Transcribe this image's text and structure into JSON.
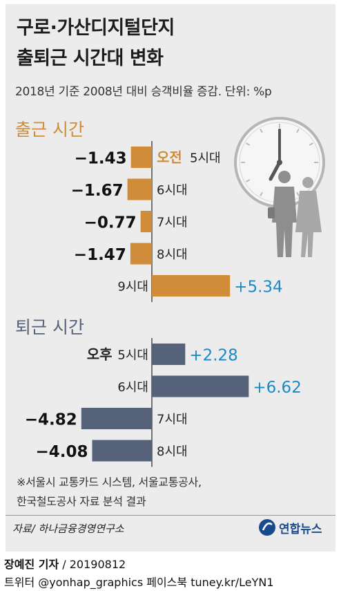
{
  "title_line1": "구로·가산디지털단지",
  "title_line2": "출퇴근 시간대 변화",
  "subtitle": "2018년 기준 2008년 대비 승객비율 증감. 단위: %p",
  "note_line1": "※서울시 교통카드 시스템, 서울교통공사,",
  "note_line2": "한국철도공사 자료 분석 결과",
  "source": "자료/ 하나금융경영연구소",
  "logo_text": "연합뉴스",
  "byline_name": "장예진 기자",
  "byline_date": "/ 20190812",
  "social": "트위터 @yonhap_graphics  페이스북 tuney.kr/LeYN1",
  "colors": {
    "morning": "#d08c38",
    "evening": "#56627a",
    "positive_text": "#1a8ac6",
    "background": "#ececec"
  },
  "icons": [
    "clock-icon",
    "commuters-icon",
    "yonhap-logo-icon"
  ],
  "chart_data": [
    {
      "type": "bar",
      "title": "출근 시간",
      "categories": [
        "5시대",
        "6시대",
        "7시대",
        "8시대",
        "9시대"
      ],
      "period_prefix": "오전",
      "values": [
        -1.43,
        -1.67,
        -0.77,
        -1.47,
        5.34
      ],
      "value_labels": [
        "−1.43",
        "−1.67",
        "−0.77",
        "−1.47",
        "+5.34"
      ]
    },
    {
      "type": "bar",
      "title": "퇴근 시간",
      "categories": [
        "5시대",
        "6시대",
        "7시대",
        "8시대"
      ],
      "period_prefix": "오후",
      "values": [
        2.28,
        6.62,
        -4.82,
        -4.08
      ],
      "value_labels": [
        "+2.28",
        "+6.62",
        "−4.82",
        "−4.08"
      ]
    }
  ]
}
